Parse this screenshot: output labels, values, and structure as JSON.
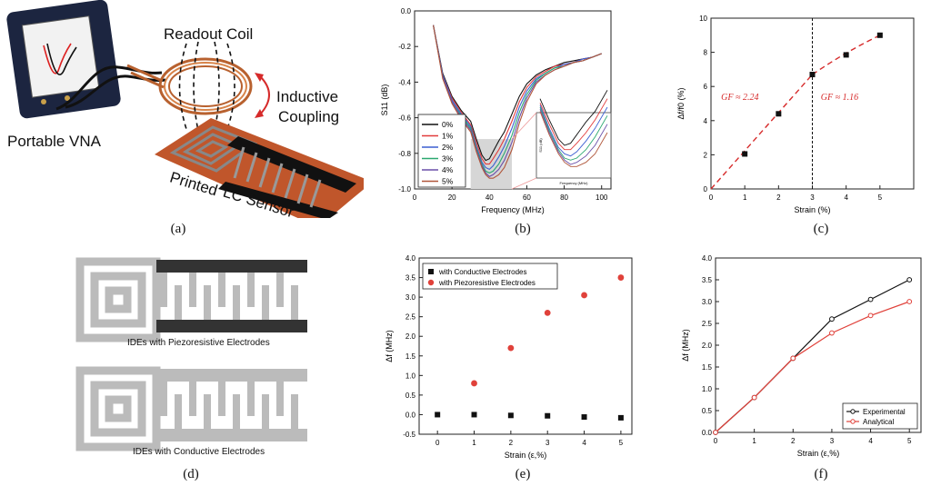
{
  "captions": [
    "(a)",
    "(b)",
    "(c)",
    "(d)",
    "(e)",
    "(f)"
  ],
  "panel_a": {
    "readout_coil": "Readout Coil",
    "inductive": "Inductive",
    "coupling": "Coupling",
    "vna": "Portable VNA",
    "sensor_word1": "Printed",
    "sensor_word2": "LC Sensor"
  },
  "panel_d": {
    "label_top": "IDEs with Piezoresistive Electrodes",
    "label_bottom": "IDEs with Conductive Electrodes"
  },
  "chart_data": [
    {
      "id": "b",
      "type": "line",
      "xlabel": "Frequency (MHz)",
      "ylabel": "S11 (dB)",
      "xlim": [
        0,
        105
      ],
      "ylim": [
        -1.0,
        0.0
      ],
      "xticks": [
        0,
        20,
        40,
        60,
        80,
        100
      ],
      "yticks": [
        -1.0,
        -0.8,
        -0.6,
        -0.4,
        -0.2,
        0.0
      ],
      "inset_xlabel": "Frequency (MHz)",
      "inset_ylabel": "S11 (dB)",
      "legend_position": "bottom-left",
      "series": [
        {
          "name": "0%",
          "color": "#111111",
          "x": [
            10,
            15,
            20,
            25,
            30,
            33,
            36,
            38,
            40,
            42,
            45,
            48,
            52,
            56,
            60,
            65,
            70,
            75,
            80,
            85,
            90,
            95,
            100
          ],
          "y": [
            -0.08,
            -0.35,
            -0.48,
            -0.56,
            -0.62,
            -0.72,
            -0.81,
            -0.84,
            -0.83,
            -0.79,
            -0.73,
            -0.68,
            -0.58,
            -0.48,
            -0.41,
            -0.36,
            -0.33,
            -0.31,
            -0.29,
            -0.28,
            -0.27,
            -0.26,
            -0.24
          ]
        },
        {
          "name": "1%",
          "color": "#e23b3b",
          "x": [
            10,
            15,
            20,
            25,
            30,
            33,
            36,
            38,
            40,
            42,
            45,
            48,
            52,
            56,
            60,
            65,
            70,
            75,
            80,
            85,
            90,
            95,
            100
          ],
          "y": [
            -0.08,
            -0.36,
            -0.49,
            -0.57,
            -0.64,
            -0.74,
            -0.83,
            -0.86,
            -0.86,
            -0.83,
            -0.78,
            -0.72,
            -0.62,
            -0.51,
            -0.43,
            -0.37,
            -0.34,
            -0.31,
            -0.3,
            -0.29,
            -0.27,
            -0.26,
            -0.24
          ]
        },
        {
          "name": "2%",
          "color": "#3b5fd1",
          "x": [
            10,
            15,
            20,
            25,
            30,
            33,
            36,
            38,
            40,
            42,
            45,
            48,
            52,
            56,
            60,
            65,
            70,
            75,
            80,
            85,
            90,
            95,
            100
          ],
          "y": [
            -0.08,
            -0.36,
            -0.5,
            -0.58,
            -0.65,
            -0.76,
            -0.85,
            -0.88,
            -0.89,
            -0.87,
            -0.82,
            -0.76,
            -0.66,
            -0.54,
            -0.45,
            -0.38,
            -0.35,
            -0.32,
            -0.3,
            -0.29,
            -0.27,
            -0.26,
            -0.24
          ]
        },
        {
          "name": "3%",
          "color": "#2aa870",
          "x": [
            10,
            15,
            20,
            25,
            30,
            33,
            36,
            38,
            40,
            42,
            45,
            48,
            52,
            56,
            60,
            65,
            70,
            75,
            80,
            85,
            90,
            95,
            100
          ],
          "y": [
            -0.08,
            -0.37,
            -0.51,
            -0.59,
            -0.66,
            -0.77,
            -0.86,
            -0.9,
            -0.91,
            -0.9,
            -0.86,
            -0.8,
            -0.7,
            -0.57,
            -0.47,
            -0.39,
            -0.35,
            -0.32,
            -0.31,
            -0.29,
            -0.28,
            -0.26,
            -0.24
          ]
        },
        {
          "name": "4%",
          "color": "#6a4fa8",
          "x": [
            10,
            15,
            20,
            25,
            30,
            33,
            36,
            38,
            40,
            42,
            45,
            48,
            52,
            56,
            60,
            65,
            70,
            75,
            80,
            85,
            90,
            95,
            100
          ],
          "y": [
            -0.08,
            -0.37,
            -0.51,
            -0.6,
            -0.67,
            -0.78,
            -0.87,
            -0.91,
            -0.93,
            -0.92,
            -0.89,
            -0.84,
            -0.74,
            -0.6,
            -0.49,
            -0.4,
            -0.36,
            -0.33,
            -0.31,
            -0.29,
            -0.28,
            -0.26,
            -0.24
          ]
        },
        {
          "name": "5%",
          "color": "#b0563a",
          "x": [
            10,
            15,
            20,
            25,
            30,
            33,
            36,
            38,
            40,
            42,
            45,
            48,
            52,
            56,
            60,
            65,
            70,
            75,
            80,
            85,
            90,
            95,
            100
          ],
          "y": [
            -0.08,
            -0.38,
            -0.52,
            -0.61,
            -0.68,
            -0.79,
            -0.88,
            -0.92,
            -0.94,
            -0.94,
            -0.92,
            -0.88,
            -0.78,
            -0.63,
            -0.51,
            -0.41,
            -0.36,
            -0.33,
            -0.31,
            -0.29,
            -0.28,
            -0.26,
            -0.24
          ]
        }
      ]
    },
    {
      "id": "c",
      "type": "scatter",
      "xlabel": "Strain (%)",
      "ylabel": "Δf/f0 (%)",
      "xlim": [
        0,
        6
      ],
      "ylim": [
        0,
        10
      ],
      "xticks": [
        0,
        1,
        2,
        3,
        4,
        5
      ],
      "yticks": [
        0,
        2,
        4,
        6,
        8,
        10
      ],
      "points": {
        "x": [
          1,
          2,
          3,
          4,
          5
        ],
        "y": [
          2.05,
          4.4,
          6.7,
          7.85,
          9.0
        ]
      },
      "fit_left": {
        "x": [
          0,
          3
        ],
        "y": [
          0,
          6.7
        ]
      },
      "fit_right": {
        "x": [
          3,
          5
        ],
        "y": [
          6.7,
          9.0
        ]
      },
      "vline_x": 3,
      "annotation_left": "GF ≈ 2.24",
      "annotation_right": "GF ≈ 1.16",
      "annotation_color": "#d62a2a"
    },
    {
      "id": "e",
      "type": "scatter",
      "xlabel": "Strain (ε,%)",
      "ylabel": "Δf (MHz)",
      "xlim": [
        -0.5,
        5.3
      ],
      "ylim": [
        -0.5,
        4.0
      ],
      "xticks": [
        0,
        1,
        2,
        3,
        4,
        5
      ],
      "yticks": [
        -0.5,
        0.0,
        0.5,
        1.0,
        1.5,
        2.0,
        2.5,
        3.0,
        3.5,
        4.0
      ],
      "legend_position": "top-left",
      "series": [
        {
          "name": "with Conductive Electrodes",
          "color": "#111111",
          "marker": "square",
          "x": [
            0,
            1,
            2,
            3,
            4,
            5
          ],
          "y": [
            0,
            0,
            -0.02,
            -0.03,
            -0.06,
            -0.08
          ]
        },
        {
          "name": "with Piezoresistive Electrodes",
          "color": "#e0413a",
          "marker": "circle",
          "x": [
            1,
            2,
            3,
            4,
            5
          ],
          "y": [
            0.8,
            1.7,
            2.6,
            3.05,
            3.5
          ]
        }
      ]
    },
    {
      "id": "f",
      "type": "line",
      "xlabel": "Strain (ε,%)",
      "ylabel": "Δf (MHz)",
      "xlim": [
        0,
        5.3
      ],
      "ylim": [
        0,
        4.0
      ],
      "xticks": [
        0,
        1,
        2,
        3,
        4,
        5
      ],
      "yticks": [
        0.0,
        0.5,
        1.0,
        1.5,
        2.0,
        2.5,
        3.0,
        3.5,
        4.0
      ],
      "legend_position": "bottom-right",
      "series": [
        {
          "name": "Experimental",
          "color": "#111111",
          "x": [
            0,
            1,
            2,
            3,
            4,
            5
          ],
          "y": [
            0,
            0.8,
            1.7,
            2.6,
            3.05,
            3.5
          ]
        },
        {
          "name": "Analytical",
          "color": "#e0413a",
          "x": [
            0,
            1,
            2,
            3,
            4,
            5
          ],
          "y": [
            0,
            0.8,
            1.7,
            2.28,
            2.68,
            3.0
          ]
        }
      ]
    }
  ]
}
